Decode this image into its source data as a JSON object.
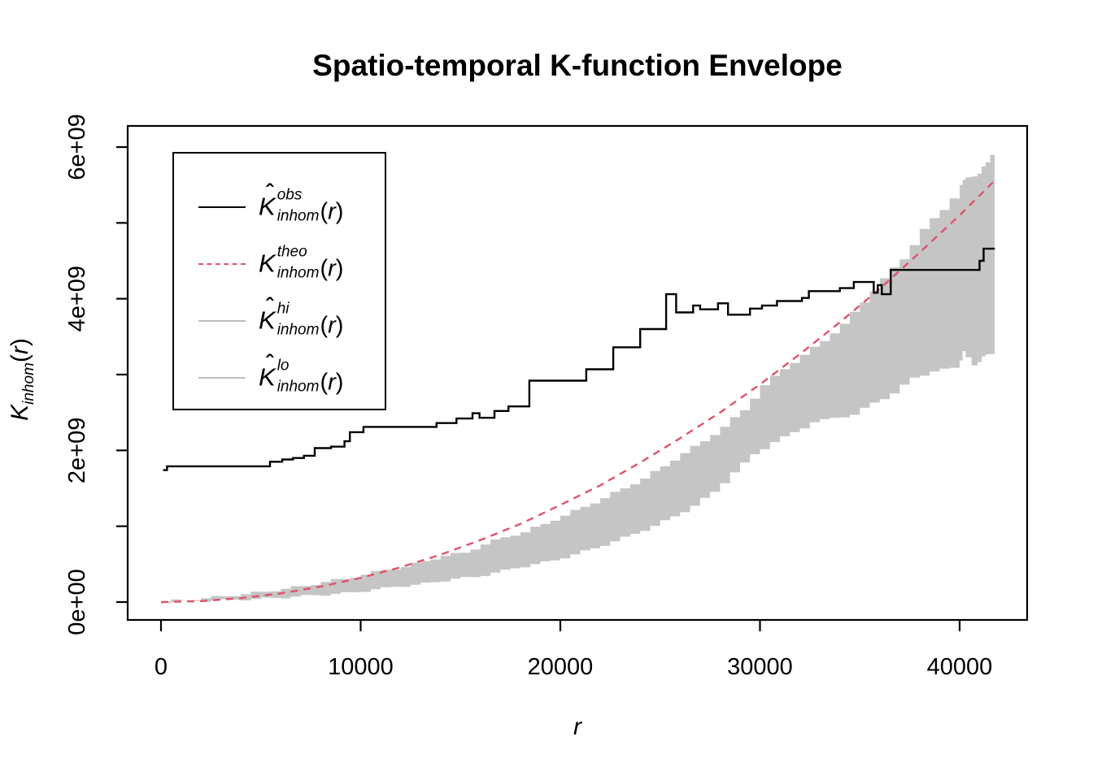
{
  "chart_data": {
    "type": "line",
    "title": "Spatio-temporal K-function Envelope",
    "xlabel": "r",
    "ylabel": {
      "base": "K",
      "sub": "inhom",
      "open": "(",
      "var": "r",
      "close": ")"
    },
    "grid": false,
    "x_axis": {
      "min": 0,
      "max": 43400,
      "ticks": [
        0,
        10000,
        20000,
        30000,
        40000
      ]
    },
    "y_axis": {
      "unit": 1000000000,
      "min": -0.24,
      "max": 6.28,
      "ticks": [
        {
          "value": 0,
          "label": "0e+00"
        },
        {
          "value": 1,
          "label": ""
        },
        {
          "value": 2,
          "label": "2e+09"
        },
        {
          "value": 3,
          "label": ""
        },
        {
          "value": 4,
          "label": "4e+09"
        },
        {
          "value": 5,
          "label": ""
        },
        {
          "value": 6,
          "label": "6e+09"
        }
      ]
    },
    "colors": {
      "obs": "#000000",
      "theo": "#DF536B",
      "envelope_fill": "#C5C5C5",
      "envelope_line": "#BEBEBE"
    },
    "legend": {
      "position": "top-left",
      "entries": [
        {
          "name": "obs",
          "style": "solid",
          "color": "#000000",
          "hat": true,
          "base": "K",
          "sup": "obs",
          "sub": "inhom",
          "open": "(",
          "var": "r",
          "close": ")"
        },
        {
          "name": "theo",
          "style": "dashed",
          "color": "#DF536B",
          "hat": false,
          "base": "K",
          "sup": "theo",
          "sub": "inhom",
          "open": "(",
          "var": "r",
          "close": ")"
        },
        {
          "name": "hi",
          "style": "solid",
          "color": "#BEBEBE",
          "hat": true,
          "base": "K",
          "sup": "hi",
          "sub": "inhom",
          "open": "(",
          "var": "r",
          "close": ")"
        },
        {
          "name": "lo",
          "style": "solid",
          "color": "#BEBEBE",
          "hat": true,
          "base": "K",
          "sup": "lo",
          "sub": "inhom",
          "open": "(",
          "var": "r",
          "close": ")"
        }
      ]
    },
    "series": [
      {
        "name": "obs",
        "type": "step",
        "color": "#000000",
        "width": 2.4,
        "r_end": 41760,
        "points": [
          [
            100,
            1.74
          ],
          [
            300,
            1.79
          ],
          [
            5460,
            1.85
          ],
          [
            6070,
            1.88
          ],
          [
            6610,
            1.9
          ],
          [
            7155,
            1.93
          ],
          [
            7700,
            2.03
          ],
          [
            8515,
            2.05
          ],
          [
            9190,
            2.12
          ],
          [
            9460,
            2.24
          ],
          [
            10140,
            2.31
          ],
          [
            13800,
            2.36
          ],
          [
            14800,
            2.42
          ],
          [
            15600,
            2.49
          ],
          [
            15950,
            2.43
          ],
          [
            16700,
            2.52
          ],
          [
            17400,
            2.58
          ],
          [
            18450,
            2.92
          ],
          [
            21300,
            3.07
          ],
          [
            22650,
            3.36
          ],
          [
            24000,
            3.6
          ],
          [
            25300,
            4.06
          ],
          [
            25800,
            3.82
          ],
          [
            26650,
            3.91
          ],
          [
            27000,
            3.86
          ],
          [
            27900,
            3.94
          ],
          [
            28400,
            3.79
          ],
          [
            29500,
            3.87
          ],
          [
            30100,
            3.91
          ],
          [
            30850,
            3.97
          ],
          [
            32100,
            4.01
          ],
          [
            32450,
            4.1
          ],
          [
            34000,
            4.14
          ],
          [
            34700,
            4.22
          ],
          [
            35700,
            4.08
          ],
          [
            35900,
            4.18
          ],
          [
            36100,
            4.06
          ],
          [
            36550,
            4.38
          ],
          [
            41000,
            4.5
          ],
          [
            41200,
            4.66
          ]
        ]
      },
      {
        "name": "theo",
        "type": "line",
        "color": "#DF536B",
        "width": 2.4,
        "dash": [
          9,
          7
        ],
        "points": [
          [
            0,
            0
          ],
          [
            2000,
            0.013
          ],
          [
            4000,
            0.051
          ],
          [
            6000,
            0.115
          ],
          [
            8000,
            0.204
          ],
          [
            10000,
            0.319
          ],
          [
            12000,
            0.459
          ],
          [
            14000,
            0.625
          ],
          [
            16000,
            0.817
          ],
          [
            18000,
            1.03
          ],
          [
            20000,
            1.28
          ],
          [
            22000,
            1.54
          ],
          [
            24000,
            1.84
          ],
          [
            26000,
            2.16
          ],
          [
            28000,
            2.5
          ],
          [
            30000,
            2.87
          ],
          [
            32000,
            3.27
          ],
          [
            34000,
            3.69
          ],
          [
            36000,
            4.13
          ],
          [
            38000,
            4.61
          ],
          [
            40000,
            5.1
          ],
          [
            41760,
            5.56
          ]
        ]
      },
      {
        "name": "envelope",
        "type": "band",
        "fill": "#C5C5C5",
        "points": [
          [
            0,
            0.0,
            0.01
          ],
          [
            1000,
            0.0,
            0.025
          ],
          [
            2000,
            0.012,
            0.05
          ],
          [
            3000,
            0.02,
            0.075
          ],
          [
            4000,
            0.03,
            0.105
          ],
          [
            5000,
            0.042,
            0.135
          ],
          [
            6000,
            0.055,
            0.175
          ],
          [
            7000,
            0.072,
            0.21
          ],
          [
            8000,
            0.09,
            0.265
          ],
          [
            9000,
            0.108,
            0.305
          ],
          [
            10000,
            0.13,
            0.36
          ],
          [
            11000,
            0.168,
            0.425
          ],
          [
            12000,
            0.2,
            0.46
          ],
          [
            13000,
            0.228,
            0.54
          ],
          [
            14000,
            0.262,
            0.61
          ],
          [
            15000,
            0.308,
            0.65
          ],
          [
            16000,
            0.33,
            0.76
          ],
          [
            17000,
            0.388,
            0.855
          ],
          [
            18000,
            0.445,
            0.92
          ],
          [
            19000,
            0.5,
            1.03
          ],
          [
            20000,
            0.55,
            1.14
          ],
          [
            21000,
            0.63,
            1.255
          ],
          [
            22000,
            0.71,
            1.37
          ],
          [
            23000,
            0.8,
            1.5
          ],
          [
            24000,
            0.9,
            1.63
          ],
          [
            25000,
            1.005,
            1.79
          ],
          [
            26000,
            1.13,
            1.965
          ],
          [
            27000,
            1.27,
            2.12
          ],
          [
            28000,
            1.455,
            2.31
          ],
          [
            29000,
            1.71,
            2.53
          ],
          [
            30000,
            1.95,
            2.86
          ],
          [
            31000,
            2.11,
            3.07
          ],
          [
            32000,
            2.24,
            3.26
          ],
          [
            33000,
            2.37,
            3.44
          ],
          [
            34000,
            2.43,
            3.67
          ],
          [
            35000,
            2.47,
            3.95
          ],
          [
            36000,
            2.63,
            4.27
          ],
          [
            37000,
            2.75,
            4.52
          ],
          [
            38000,
            2.96,
            4.92
          ],
          [
            39000,
            3.04,
            5.17
          ],
          [
            40000,
            3.09,
            5.5
          ],
          [
            40300,
            3.31,
            5.6
          ],
          [
            40900,
            3.12,
            5.65
          ],
          [
            41300,
            3.24,
            5.8
          ],
          [
            41760,
            3.27,
            6.02
          ]
        ]
      }
    ]
  }
}
